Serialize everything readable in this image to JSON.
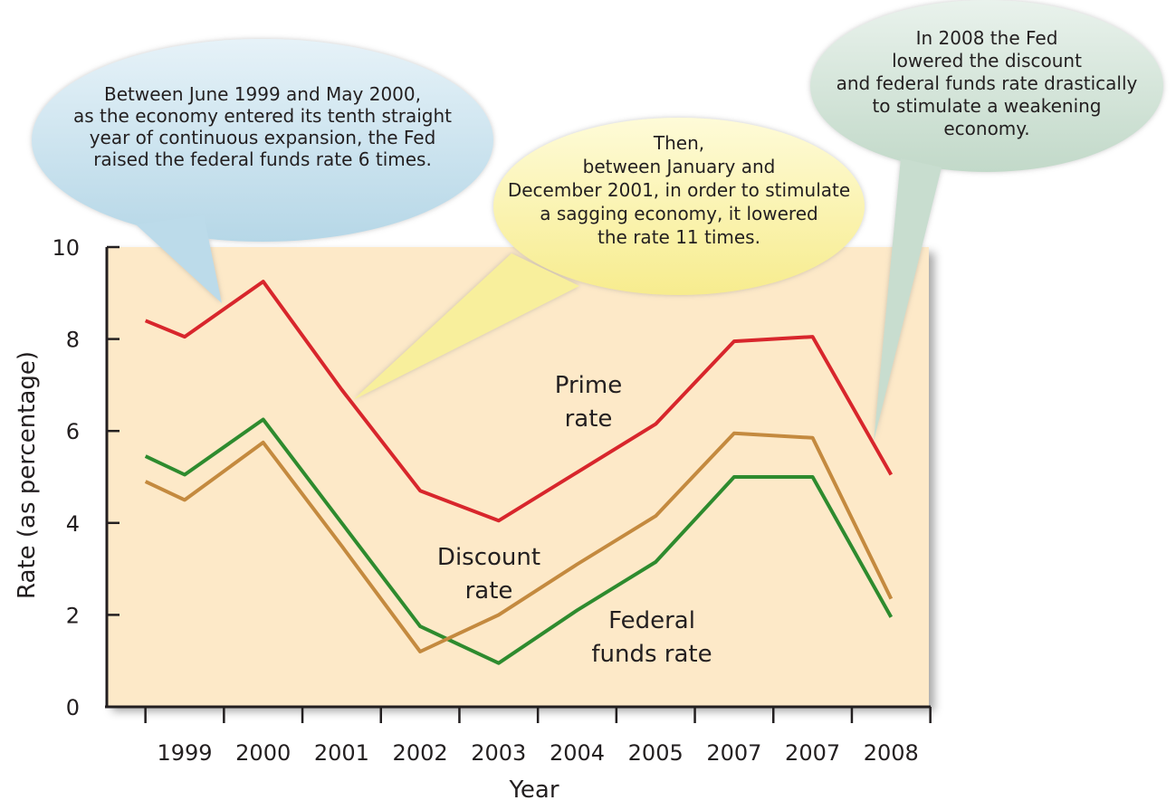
{
  "chart_data": {
    "type": "line",
    "title": "",
    "xlabel": "Year",
    "ylabel": "Rate (as percentage)",
    "categories": [
      "1999",
      "2000",
      "2001",
      "2002",
      "2003",
      "2004",
      "2005",
      "2007",
      "2007",
      "2008"
    ],
    "ylim": [
      0,
      10
    ],
    "y_ticks": [
      "0",
      "2",
      "4",
      "6",
      "8",
      "10"
    ],
    "grid": false,
    "colors": {
      "plot_background": "#fde9c8",
      "prime": "#d8262c",
      "discount": "#2e8b2e",
      "federal_funds": "#c48a3f",
      "bubble_left": "#c7e1ee",
      "bubble_middle": "#fbf3a4",
      "bubble_right": "#d2e4d8"
    },
    "series": [
      {
        "name": "Prime rate",
        "label_lines": [
          "Prime",
          "rate"
        ],
        "x": [
          -0.5,
          0,
          1,
          2,
          3,
          4,
          5,
          6,
          7,
          8,
          9
        ],
        "values": [
          8.4,
          8.05,
          9.25,
          6.9,
          4.7,
          4.05,
          5.1,
          6.15,
          7.95,
          8.05,
          5.05
        ]
      },
      {
        "name": "Discount rate",
        "label_lines": [
          "Discount",
          "rate"
        ],
        "x": [
          -0.5,
          0,
          1,
          2,
          3,
          4,
          5,
          6,
          7,
          8,
          9
        ],
        "values": [
          5.45,
          5.05,
          6.25,
          4.0,
          1.75,
          0.95,
          2.1,
          3.15,
          5.0,
          5.0,
          1.95
        ]
      },
      {
        "name": "Federal funds rate",
        "label_lines": [
          "Federal",
          "funds rate"
        ],
        "x": [
          -0.5,
          0,
          1,
          2,
          3,
          4,
          5,
          6,
          7,
          8,
          9
        ],
        "values": [
          4.9,
          4.5,
          5.75,
          3.5,
          1.2,
          2.0,
          3.1,
          4.15,
          5.95,
          5.85,
          2.35
        ]
      }
    ],
    "annotations": [
      {
        "id": "left",
        "lines": [
          "Between June 1999 and May 2000,",
          "as the economy entered its tenth straight",
          "year of continuous expansion, the Fed",
          "raised the federal funds rate 6 times."
        ]
      },
      {
        "id": "middle",
        "lines": [
          "Then,",
          "between January and",
          "December 2001, in order to stimulate",
          "a sagging economy, it lowered",
          "the rate 11 times."
        ]
      },
      {
        "id": "right",
        "lines": [
          "In 2008 the Fed",
          "lowered the discount",
          "and federal funds rate drastically",
          "to stimulate a weakening",
          "economy."
        ]
      }
    ]
  }
}
